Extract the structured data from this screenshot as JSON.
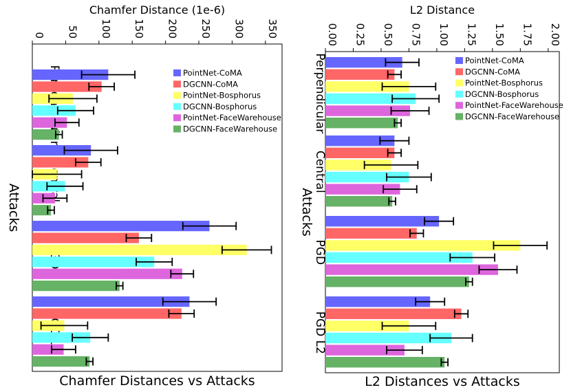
{
  "chart_data": [
    {
      "type": "bar",
      "orientation": "horizontal",
      "title": "Chamfer Distance (1e-6)",
      "xlabel": "Chamfer Distance (1e-6)",
      "ylabel": "Attacks",
      "caption": "Chamfer Distances vs Attacks",
      "xlim": [
        0,
        375
      ],
      "xticks": [
        "0",
        "50",
        "100",
        "150",
        "200",
        "250",
        "300",
        "350"
      ],
      "xtick_values": [
        0,
        50,
        100,
        150,
        200,
        250,
        300,
        350
      ],
      "categories": [
        "Perpendicular",
        "Central",
        "PGD",
        "PGD L2"
      ],
      "legend_position": "upper-right",
      "grid": false,
      "series": [
        {
          "name": "PointNet-CoMA",
          "color": "#6666ff",
          "values": [
            114,
            88,
            266,
            236
          ],
          "errors": [
            40,
            40,
            40,
            40
          ]
        },
        {
          "name": "DGCNN-CoMA",
          "color": "#ff6666",
          "values": [
            104,
            84,
            160,
            224
          ],
          "errors": [
            19,
            19,
            19,
            19
          ]
        },
        {
          "name": "PointNet-Bosphorus",
          "color": "#ffff66",
          "values": [
            61,
            37,
            322,
            48
          ],
          "errors": [
            36,
            37,
            37,
            35
          ]
        },
        {
          "name": "DGCNN-Bosphorus",
          "color": "#66ffff",
          "values": [
            65,
            49,
            183,
            87
          ],
          "errors": [
            27,
            27,
            27,
            27
          ]
        },
        {
          "name": "PointNet-FaceWarehouse",
          "color": "#dd66dd",
          "values": [
            52,
            34,
            225,
            47
          ],
          "errors": [
            18,
            18,
            17,
            18
          ]
        },
        {
          "name": "DGCNN-FaceWarehouse",
          "color": "#66b266",
          "values": [
            40,
            28,
            131,
            86
          ],
          "errors": [
            5,
            5,
            5,
            5
          ]
        }
      ]
    },
    {
      "type": "bar",
      "orientation": "horizontal",
      "title": "L2 Distance",
      "xlabel": "L2 Distance",
      "ylabel": "Attacks",
      "caption": "L2 Distances vs Attacks",
      "xlim": [
        0,
        2.1
      ],
      "xticks": [
        "0.00",
        "0.25",
        "0.50",
        "0.75",
        "1.00",
        "1.25",
        "1.50",
        "1.75",
        "2.00"
      ],
      "xtick_values": [
        0,
        0.25,
        0.5,
        0.75,
        1.0,
        1.25,
        1.5,
        1.75,
        2.0
      ],
      "categories": [
        "Perpendicular",
        "Central",
        "PGD",
        "PGD L2"
      ],
      "legend_position": "upper-right",
      "grid": false,
      "series": [
        {
          "name": "PointNet-CoMA",
          "color": "#6666ff",
          "values": [
            0.69,
            0.62,
            1.02,
            0.94
          ],
          "errors": [
            0.15,
            0.13,
            0.13,
            0.13
          ]
        },
        {
          "name": "DGCNN-CoMA",
          "color": "#ff6666",
          "values": [
            0.62,
            0.62,
            0.82,
            1.22
          ],
          "errors": [
            0.06,
            0.06,
            0.06,
            0.06
          ]
        },
        {
          "name": "PointNet-Bosphorus",
          "color": "#ffff66",
          "values": [
            0.75,
            0.59,
            1.75,
            0.75
          ],
          "errors": [
            0.24,
            0.24,
            0.24,
            0.24
          ]
        },
        {
          "name": "DGCNN-Bosphorus",
          "color": "#66ffff",
          "values": [
            0.81,
            0.75,
            1.32,
            1.13
          ],
          "errors": [
            0.21,
            0.2,
            0.2,
            0.19
          ]
        },
        {
          "name": "PointNet-FaceWarehouse",
          "color": "#dd66dd",
          "values": [
            0.76,
            0.67,
            1.55,
            0.71
          ],
          "errors": [
            0.17,
            0.15,
            0.17,
            0.16
          ]
        },
        {
          "name": "DGCNN-FaceWarehouse",
          "color": "#66b266",
          "values": [
            0.65,
            0.6,
            1.29,
            1.07
          ],
          "errors": [
            0.03,
            0.03,
            0.03,
            0.03
          ]
        }
      ]
    }
  ]
}
